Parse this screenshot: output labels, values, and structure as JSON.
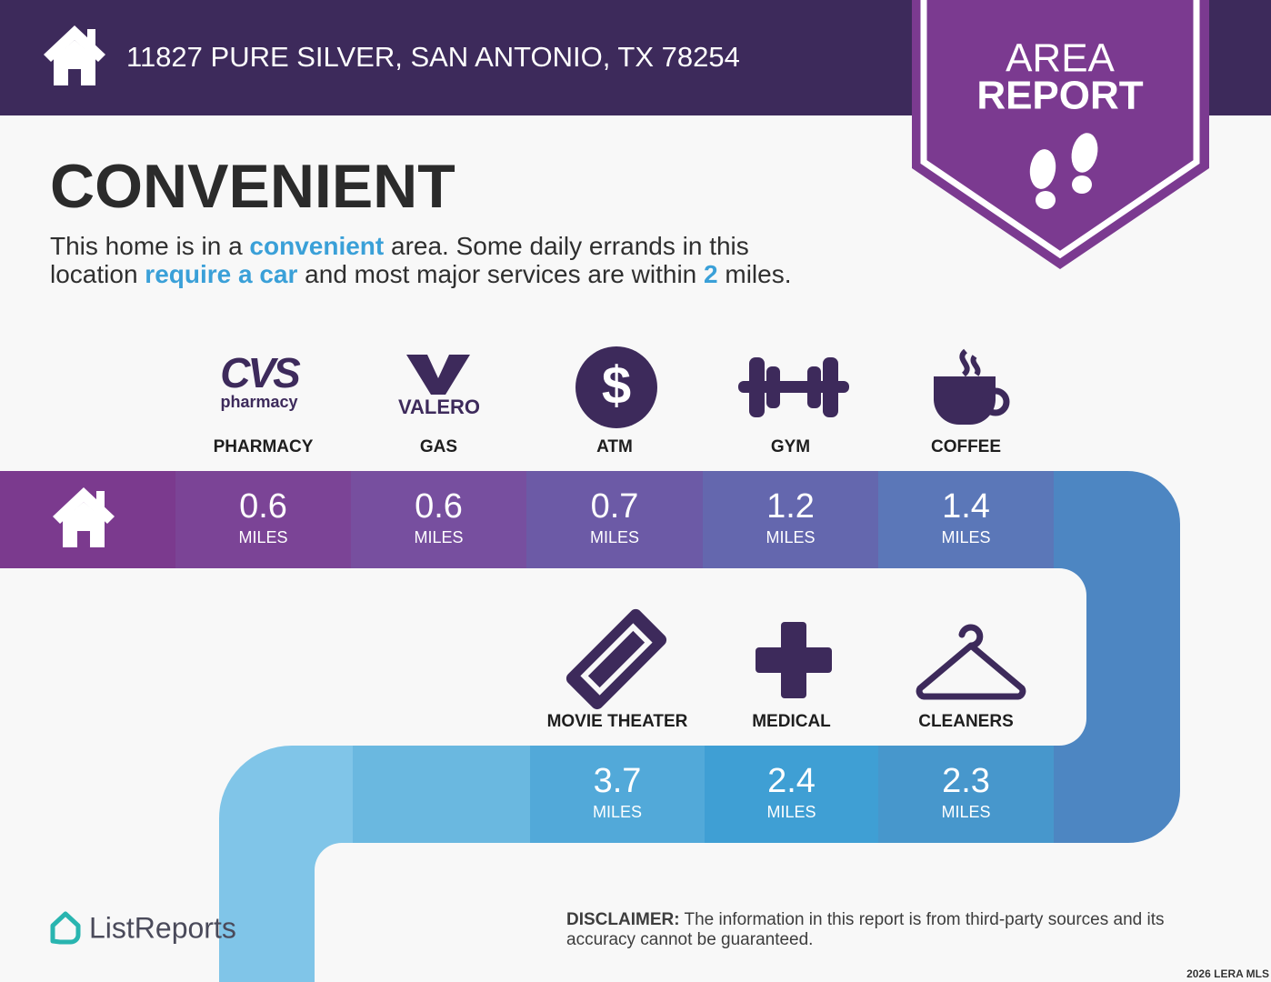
{
  "header": {
    "address": "11827 PURE SILVER, SAN ANTONIO, TX 78254"
  },
  "badge": {
    "line1": "AREA",
    "line2": "REPORT"
  },
  "title": "CONVENIENT",
  "description": [
    "This home is in a ",
    "convenient",
    " area. Some daily errands in this",
    "location ",
    "require a car",
    " and most major services are within ",
    "2",
    " miles."
  ],
  "unit": "MILES",
  "amenities": [
    {
      "label": "PHARMACY",
      "distance": 0.6,
      "logo": "CVS",
      "logo_sub": "pharmacy"
    },
    {
      "label": "GAS",
      "distance": 0.6,
      "logo": "VALERO"
    },
    {
      "label": "ATM",
      "distance": 0.7,
      "icon": "$"
    },
    {
      "label": "GYM",
      "distance": 1.2
    },
    {
      "label": "COFFEE",
      "distance": 1.4
    },
    {
      "label": "MOVIE THEATER",
      "distance": 3.7
    },
    {
      "label": "MEDICAL",
      "distance": 2.4
    },
    {
      "label": "CLEANERS",
      "distance": 2.3
    }
  ],
  "footer": {
    "brand": "ListReports",
    "disclaimer_label": "DISCLAIMER:",
    "disclaimer_text": "The information in this report is from third-party sources and its accuracy cannot be guaranteed.",
    "watermark": "2026 LERA MLS"
  }
}
